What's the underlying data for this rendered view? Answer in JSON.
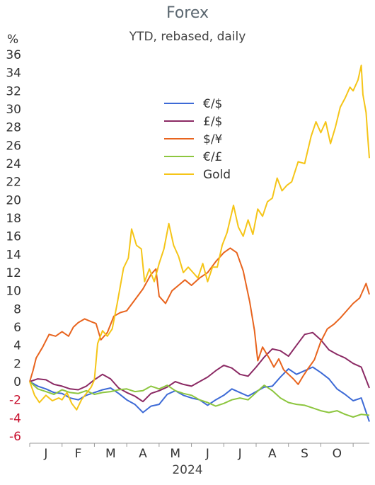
{
  "chart_data": {
    "type": "line",
    "title": "Forex",
    "subtitle": "YTD, rebased, daily",
    "ylabel": "%",
    "xlabel": "2024",
    "ylim": [
      -6,
      36
    ],
    "yticks": [
      -6,
      -4,
      -2,
      0,
      2,
      4,
      6,
      8,
      10,
      12,
      14,
      16,
      18,
      20,
      22,
      24,
      26,
      28,
      30,
      32,
      34,
      36
    ],
    "xtick_labels": [
      "J",
      "F",
      "M",
      "A",
      "M",
      "J",
      "J",
      "A",
      "S",
      "O"
    ],
    "x_months": [
      0.5,
      1.5,
      2.5,
      3.5,
      4.5,
      5.5,
      6.5,
      7.5,
      8.5,
      9.5
    ],
    "xlim": [
      0,
      10.5
    ],
    "grid": false,
    "legend_position": "top-center",
    "series": [
      {
        "name": "€/$",
        "color": "#3d6ad6",
        "points": [
          [
            0,
            0
          ],
          [
            0.25,
            -0.5
          ],
          [
            0.5,
            -0.8
          ],
          [
            0.75,
            -1.2
          ],
          [
            1,
            -1.3
          ],
          [
            1.25,
            -1.8
          ],
          [
            1.5,
            -2.0
          ],
          [
            1.75,
            -1.5
          ],
          [
            2,
            -1.2
          ],
          [
            2.25,
            -0.9
          ],
          [
            2.5,
            -0.7
          ],
          [
            2.75,
            -1.3
          ],
          [
            3,
            -2.0
          ],
          [
            3.25,
            -2.5
          ],
          [
            3.5,
            -3.4
          ],
          [
            3.75,
            -2.7
          ],
          [
            4,
            -2.5
          ],
          [
            4.25,
            -1.4
          ],
          [
            4.5,
            -1.0
          ],
          [
            4.75,
            -1.5
          ],
          [
            5,
            -1.8
          ],
          [
            5.25,
            -2.0
          ],
          [
            5.5,
            -2.6
          ],
          [
            5.75,
            -2.0
          ],
          [
            6,
            -1.5
          ],
          [
            6.25,
            -0.8
          ],
          [
            6.5,
            -1.2
          ],
          [
            6.75,
            -1.6
          ],
          [
            7,
            -1.1
          ],
          [
            7.25,
            -0.6
          ],
          [
            7.5,
            -0.5
          ],
          [
            7.75,
            0.5
          ],
          [
            8,
            1.4
          ],
          [
            8.25,
            0.8
          ],
          [
            8.5,
            1.2
          ],
          [
            8.75,
            1.6
          ],
          [
            9,
            1.0
          ],
          [
            9.25,
            0.3
          ],
          [
            9.5,
            -0.8
          ],
          [
            9.75,
            -1.4
          ],
          [
            10,
            -2.1
          ],
          [
            10.25,
            -1.8
          ],
          [
            10.5,
            -4.4
          ]
        ]
      },
      {
        "name": "£/$",
        "color": "#8b2a64",
        "points": [
          [
            0,
            0
          ],
          [
            0.25,
            0.3
          ],
          [
            0.5,
            0.2
          ],
          [
            0.75,
            -0.3
          ],
          [
            1,
            -0.5
          ],
          [
            1.25,
            -0.8
          ],
          [
            1.5,
            -0.9
          ],
          [
            1.75,
            -0.5
          ],
          [
            2,
            0.2
          ],
          [
            2.25,
            0.8
          ],
          [
            2.5,
            0.3
          ],
          [
            2.75,
            -0.7
          ],
          [
            3,
            -1.2
          ],
          [
            3.25,
            -1.6
          ],
          [
            3.5,
            -2.2
          ],
          [
            3.75,
            -1.3
          ],
          [
            4,
            -1.0
          ],
          [
            4.25,
            -0.6
          ],
          [
            4.5,
            0.0
          ],
          [
            4.75,
            -0.3
          ],
          [
            5,
            -0.5
          ],
          [
            5.25,
            0.0
          ],
          [
            5.5,
            0.5
          ],
          [
            5.75,
            1.2
          ],
          [
            6,
            1.8
          ],
          [
            6.25,
            1.5
          ],
          [
            6.5,
            0.8
          ],
          [
            6.75,
            0.6
          ],
          [
            7,
            1.6
          ],
          [
            7.25,
            2.7
          ],
          [
            7.5,
            3.6
          ],
          [
            7.75,
            3.4
          ],
          [
            8,
            2.8
          ],
          [
            8.25,
            4.0
          ],
          [
            8.5,
            5.2
          ],
          [
            8.75,
            5.4
          ],
          [
            9,
            4.6
          ],
          [
            9.25,
            3.5
          ],
          [
            9.5,
            3.0
          ],
          [
            9.75,
            2.6
          ],
          [
            10,
            2.0
          ],
          [
            10.25,
            1.6
          ],
          [
            10.5,
            -0.7
          ]
        ]
      },
      {
        "name": "$/¥",
        "color": "#e8641e",
        "points": [
          [
            0,
            0
          ],
          [
            0.1,
            1.2
          ],
          [
            0.2,
            2.6
          ],
          [
            0.4,
            3.8
          ],
          [
            0.6,
            5.2
          ],
          [
            0.8,
            5.0
          ],
          [
            1,
            5.5
          ],
          [
            1.2,
            5.0
          ],
          [
            1.35,
            6.0
          ],
          [
            1.5,
            6.5
          ],
          [
            1.7,
            6.9
          ],
          [
            1.9,
            6.6
          ],
          [
            2.05,
            6.4
          ],
          [
            2.2,
            4.6
          ],
          [
            2.4,
            5.4
          ],
          [
            2.6,
            7.2
          ],
          [
            2.8,
            7.6
          ],
          [
            3,
            7.8
          ],
          [
            3.25,
            9.0
          ],
          [
            3.5,
            10.2
          ],
          [
            3.75,
            11.8
          ],
          [
            3.9,
            12.4
          ],
          [
            4,
            9.4
          ],
          [
            4.2,
            8.6
          ],
          [
            4.4,
            10.0
          ],
          [
            4.6,
            10.6
          ],
          [
            4.8,
            11.2
          ],
          [
            5,
            10.6
          ],
          [
            5.25,
            11.4
          ],
          [
            5.5,
            12.0
          ],
          [
            5.75,
            13.2
          ],
          [
            6,
            14.2
          ],
          [
            6.2,
            14.7
          ],
          [
            6.4,
            14.2
          ],
          [
            6.6,
            12.2
          ],
          [
            6.8,
            8.8
          ],
          [
            6.95,
            5.6
          ],
          [
            7.05,
            2.3
          ],
          [
            7.2,
            3.8
          ],
          [
            7.4,
            2.6
          ],
          [
            7.55,
            1.6
          ],
          [
            7.7,
            2.5
          ],
          [
            7.85,
            1.3
          ],
          [
            8,
            0.8
          ],
          [
            8.15,
            0.3
          ],
          [
            8.3,
            -0.3
          ],
          [
            8.45,
            0.6
          ],
          [
            8.6,
            1.4
          ],
          [
            8.8,
            2.4
          ],
          [
            9,
            4.4
          ],
          [
            9.2,
            5.8
          ],
          [
            9.4,
            6.3
          ],
          [
            9.6,
            7.0
          ],
          [
            9.8,
            7.8
          ],
          [
            10,
            8.6
          ],
          [
            10.2,
            9.2
          ],
          [
            10.4,
            10.8
          ],
          [
            10.5,
            9.6
          ]
        ]
      },
      {
        "name": "€/£",
        "color": "#8dc63f",
        "points": [
          [
            0,
            0
          ],
          [
            0.25,
            -0.8
          ],
          [
            0.5,
            -1.1
          ],
          [
            0.75,
            -1.4
          ],
          [
            1,
            -0.9
          ],
          [
            1.25,
            -1.2
          ],
          [
            1.5,
            -1.3
          ],
          [
            1.75,
            -1.0
          ],
          [
            2,
            -1.4
          ],
          [
            2.25,
            -1.2
          ],
          [
            2.5,
            -1.1
          ],
          [
            2.75,
            -0.9
          ],
          [
            3,
            -0.8
          ],
          [
            3.25,
            -1.1
          ],
          [
            3.5,
            -1.0
          ],
          [
            3.75,
            -0.5
          ],
          [
            4,
            -0.8
          ],
          [
            4.25,
            -0.4
          ],
          [
            4.5,
            -1.0
          ],
          [
            4.75,
            -1.3
          ],
          [
            5,
            -1.5
          ],
          [
            5.25,
            -2.0
          ],
          [
            5.5,
            -2.3
          ],
          [
            5.75,
            -2.7
          ],
          [
            6,
            -2.4
          ],
          [
            6.25,
            -2.0
          ],
          [
            6.5,
            -1.8
          ],
          [
            6.75,
            -2.0
          ],
          [
            7,
            -1.2
          ],
          [
            7.25,
            -0.4
          ],
          [
            7.5,
            -1.0
          ],
          [
            7.75,
            -1.8
          ],
          [
            8,
            -2.3
          ],
          [
            8.25,
            -2.5
          ],
          [
            8.5,
            -2.6
          ],
          [
            8.75,
            -2.9
          ],
          [
            9,
            -3.2
          ],
          [
            9.25,
            -3.4
          ],
          [
            9.5,
            -3.2
          ],
          [
            9.75,
            -3.6
          ],
          [
            10,
            -3.9
          ],
          [
            10.25,
            -3.6
          ],
          [
            10.5,
            -3.7
          ]
        ]
      },
      {
        "name": "Gold",
        "color": "#f5c518",
        "points": [
          [
            0,
            0
          ],
          [
            0.15,
            -1.5
          ],
          [
            0.3,
            -2.3
          ],
          [
            0.5,
            -1.5
          ],
          [
            0.7,
            -2.1
          ],
          [
            0.9,
            -1.8
          ],
          [
            1,
            -2.0
          ],
          [
            1.15,
            -1.2
          ],
          [
            1.3,
            -2.4
          ],
          [
            1.45,
            -3.1
          ],
          [
            1.6,
            -2.0
          ],
          [
            1.75,
            -1.3
          ],
          [
            1.9,
            -0.6
          ],
          [
            2,
            0.2
          ],
          [
            2.1,
            4.2
          ],
          [
            2.25,
            5.6
          ],
          [
            2.4,
            5.0
          ],
          [
            2.55,
            5.8
          ],
          [
            2.7,
            8.5
          ],
          [
            2.9,
            12.5
          ],
          [
            3.05,
            13.6
          ],
          [
            3.15,
            16.8
          ],
          [
            3.3,
            15.0
          ],
          [
            3.45,
            14.6
          ],
          [
            3.55,
            11.0
          ],
          [
            3.7,
            12.4
          ],
          [
            3.85,
            11.0
          ],
          [
            4.0,
            13.0
          ],
          [
            4.15,
            14.6
          ],
          [
            4.3,
            17.4
          ],
          [
            4.45,
            15.0
          ],
          [
            4.6,
            13.8
          ],
          [
            4.75,
            12.0
          ],
          [
            4.9,
            12.6
          ],
          [
            5.05,
            12.0
          ],
          [
            5.2,
            11.4
          ],
          [
            5.35,
            13.0
          ],
          [
            5.5,
            11.0
          ],
          [
            5.65,
            12.6
          ],
          [
            5.8,
            12.6
          ],
          [
            5.95,
            15.0
          ],
          [
            6.1,
            16.4
          ],
          [
            6.3,
            19.4
          ],
          [
            6.45,
            17.0
          ],
          [
            6.6,
            16.0
          ],
          [
            6.75,
            17.8
          ],
          [
            6.9,
            16.2
          ],
          [
            7.05,
            19.0
          ],
          [
            7.2,
            18.2
          ],
          [
            7.35,
            19.8
          ],
          [
            7.5,
            20.2
          ],
          [
            7.65,
            22.4
          ],
          [
            7.8,
            21.0
          ],
          [
            7.95,
            21.6
          ],
          [
            8.1,
            22.0
          ],
          [
            8.3,
            24.2
          ],
          [
            8.5,
            24.0
          ],
          [
            8.7,
            27.0
          ],
          [
            8.85,
            28.6
          ],
          [
            9.0,
            27.4
          ],
          [
            9.15,
            28.6
          ],
          [
            9.3,
            26.2
          ],
          [
            9.45,
            28.0
          ],
          [
            9.6,
            30.2
          ],
          [
            9.75,
            31.2
          ],
          [
            9.9,
            32.4
          ],
          [
            10.0,
            32.0
          ],
          [
            10.15,
            33.2
          ],
          [
            10.25,
            34.8
          ],
          [
            10.3,
            31.6
          ],
          [
            10.4,
            29.6
          ],
          [
            10.45,
            27.0
          ],
          [
            10.5,
            24.6
          ]
        ]
      }
    ]
  }
}
